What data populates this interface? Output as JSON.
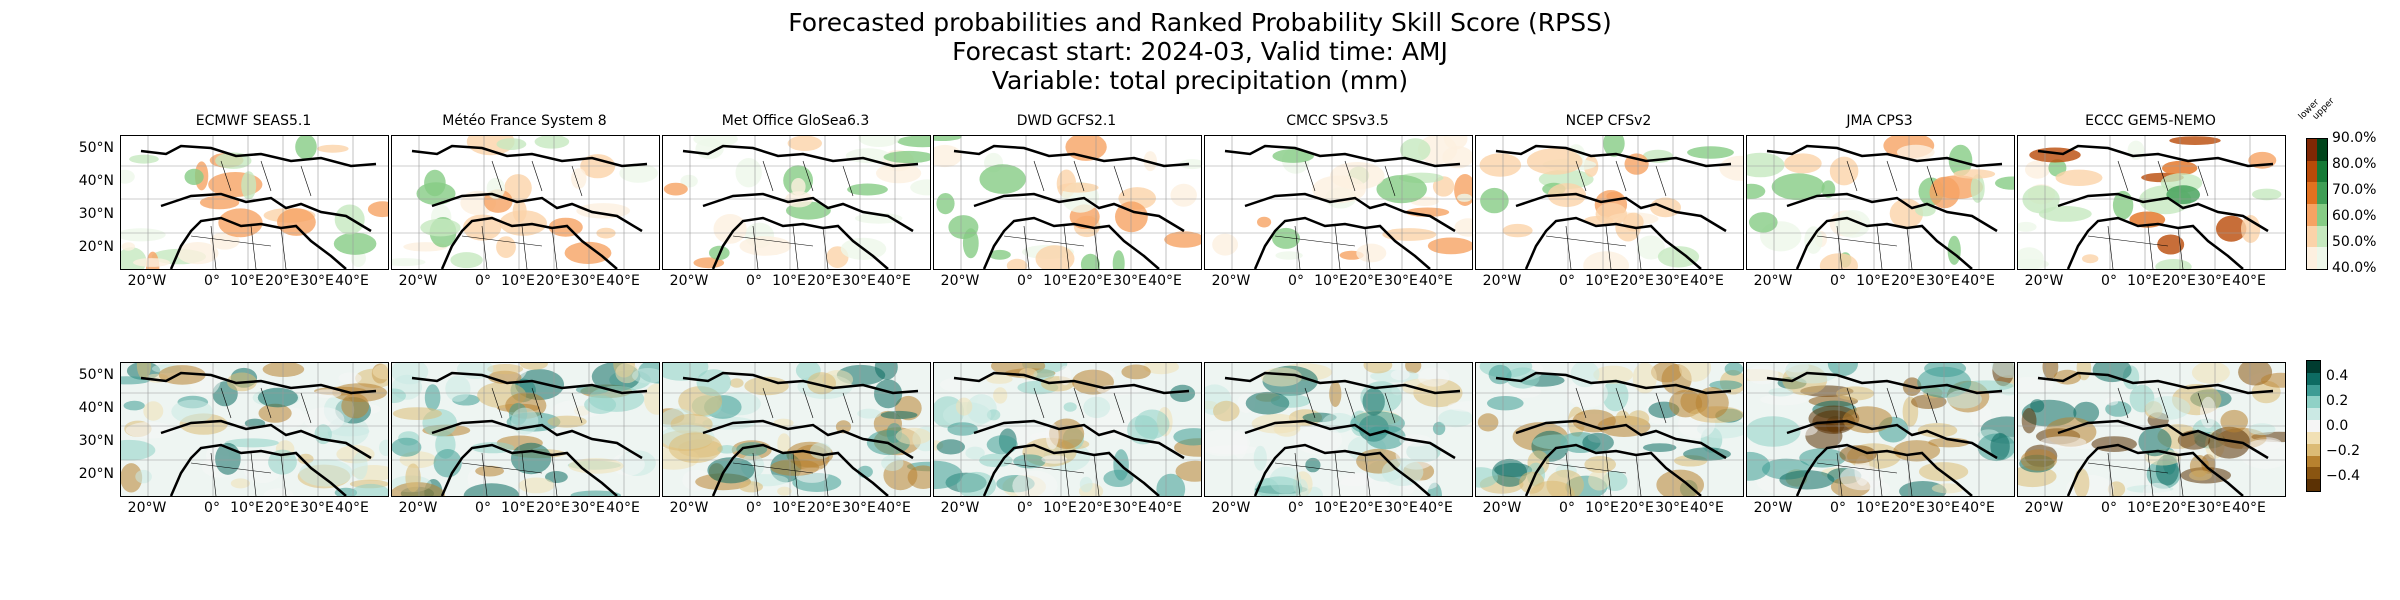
{
  "figure": {
    "title_line1": "Forecasted probabilities and Ranked Probability Skill Score (RPSS)",
    "title_line2": "Forecast start: 2024-03, Valid time: AMJ",
    "title_line3": "Variable: total precipitation (mm)"
  },
  "models": [
    "ECMWF SEAS5.1",
    "Météo France System 8",
    "Met Office GloSea6.3",
    "DWD GCFS2.1",
    "CMCC SPSv3.5",
    "NCEP CFSv2",
    "JMA CPS3",
    "ECCC GEM5-NEMO"
  ],
  "axes": {
    "lat_ticks": [
      "50°N",
      "40°N",
      "30°N",
      "20°N"
    ],
    "lon_ticks": [
      "20°W",
      "0°",
      "10°E",
      "20°E",
      "30°E",
      "40°E"
    ]
  },
  "prob_colorbar": {
    "ticks": [
      "90.0%",
      "80.0%",
      "70.0%",
      "60.0%",
      "50.0%",
      "40.0%"
    ],
    "tag_lower": "lower",
    "tag_upper": "upper",
    "lower_colors": [
      "#fdf0e0",
      "#fbd3a9",
      "#f6a363",
      "#e2711f",
      "#b94a08",
      "#7f2704"
    ],
    "upper_colors": [
      "#eef7ea",
      "#c6e9bf",
      "#86cc85",
      "#3f9e55",
      "#157a36",
      "#00441b"
    ]
  },
  "rpss_colorbar": {
    "ticks": [
      "0.4",
      "0.2",
      "0.0",
      "−0.2",
      "−0.4"
    ],
    "colors": [
      "#5b3104",
      "#8a5511",
      "#b8822f",
      "#dcbb75",
      "#f1e0b5",
      "#f5f5f5",
      "#cbe9e4",
      "#8fd1c6",
      "#3e9c94",
      "#0d6b62",
      "#003c30"
    ]
  }
}
